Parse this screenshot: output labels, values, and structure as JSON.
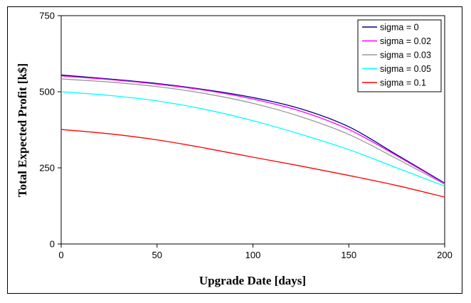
{
  "chart_data": {
    "type": "line",
    "title": "",
    "xlabel": "Upgrade Date [days]",
    "ylabel": "Total Expected Profit [k$]",
    "xlim": [
      0,
      200
    ],
    "ylim": [
      0,
      750
    ],
    "xticks": [
      0,
      50,
      100,
      150,
      200
    ],
    "yticks": [
      0,
      250,
      500,
      750
    ],
    "grid": false,
    "legend_position": "top-right",
    "x": [
      0,
      25,
      50,
      75,
      100,
      125,
      150,
      175,
      200
    ],
    "series": [
      {
        "name": "sigma = 0",
        "color": "#000080",
        "values": [
          555,
          542,
          527,
          507,
          481,
          444,
          385,
          293,
          200
        ]
      },
      {
        "name": "sigma = 0.02",
        "color": "#ff00ff",
        "values": [
          552,
          540,
          525,
          505,
          476,
          436,
          376,
          290,
          198
        ]
      },
      {
        "name": "sigma = 0.03",
        "color": "#999999",
        "values": [
          542,
          532,
          517,
          494,
          462,
          418,
          360,
          280,
          196
        ]
      },
      {
        "name": "sigma = 0.05",
        "color": "#00ffff",
        "values": [
          500,
          488,
          470,
          442,
          405,
          360,
          310,
          250,
          190
        ]
      },
      {
        "name": "sigma = 0.1",
        "color": "#ff0000",
        "values": [
          376,
          362,
          342,
          315,
          285,
          256,
          225,
          192,
          154
        ]
      }
    ]
  }
}
